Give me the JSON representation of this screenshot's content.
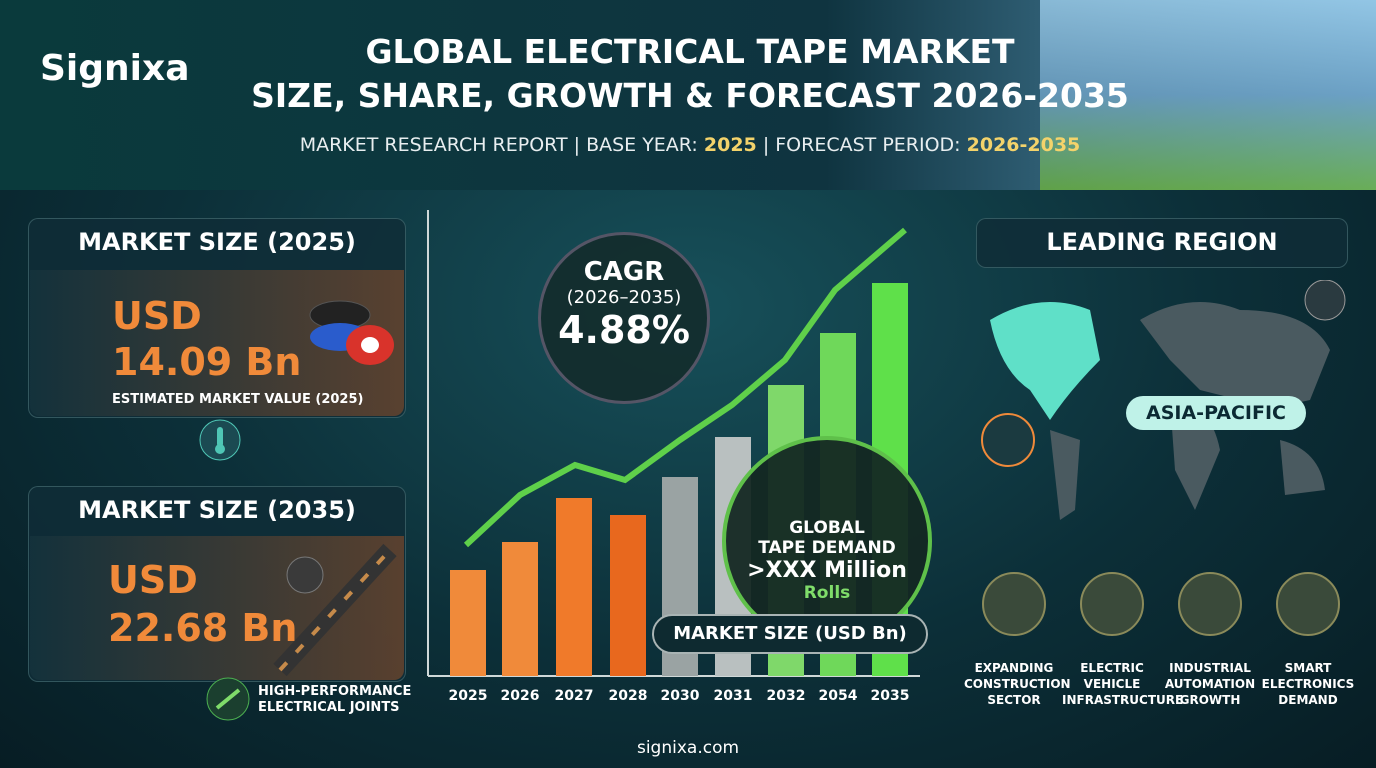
{
  "brand": "Signixa",
  "header": {
    "title_line1": "GLOBAL ELECTRICAL TAPE MARKET",
    "title_line2": "SIZE, SHARE, GROWTH & FORECAST 2026-2035",
    "subtitle": [
      "MARKET RESEARCH REPORT | BASE YEAR:",
      "2025",
      "| FORECAST PERIOD:",
      "2026-2035"
    ]
  },
  "market_size_2025": {
    "heading": "MARKET SIZE (2025)",
    "currency": "USD",
    "value": "14.09 Bn",
    "caption": "ESTIMATED MARKET VALUE (2025)"
  },
  "market_size_2035": {
    "heading": "MARKET SIZE (2035)",
    "currency": "USD",
    "value": "22.68 Bn",
    "caption": [
      "HIGH-PERFORMANCE",
      "ELECTRICAL JOINTS"
    ]
  },
  "cagr": {
    "label": "CAGR",
    "period": "(2026–2035)",
    "value": "4.88%"
  },
  "chart": {
    "title": "MARKET SIZE (USD Bn)",
    "years": [
      "2025",
      "2026",
      "2027",
      "2028",
      "2030",
      "2031",
      "2032",
      "2054",
      "2035"
    ]
  },
  "demand": {
    "lines": [
      "GLOBAL",
      "TAPE DEMAND"
    ],
    "value": ">XXX Million",
    "unit": "Rolls"
  },
  "region": {
    "heading": "LEADING REGION",
    "name": "ASIA-PACIFIC"
  },
  "drivers": [
    {
      "label": [
        "EXPANDING",
        "CONSTRUCTION",
        "SECTOR"
      ]
    },
    {
      "label": [
        "ELECTRIC",
        "VEHICLE",
        "INFRASTRUCTURE"
      ]
    },
    {
      "label": [
        "INDUSTRIAL",
        "AUTOMATION",
        "GROWTH"
      ]
    },
    {
      "label": [
        "SMART",
        "ELECTRONICS",
        "DEMAND"
      ]
    }
  ],
  "footer": "signixa.com"
}
